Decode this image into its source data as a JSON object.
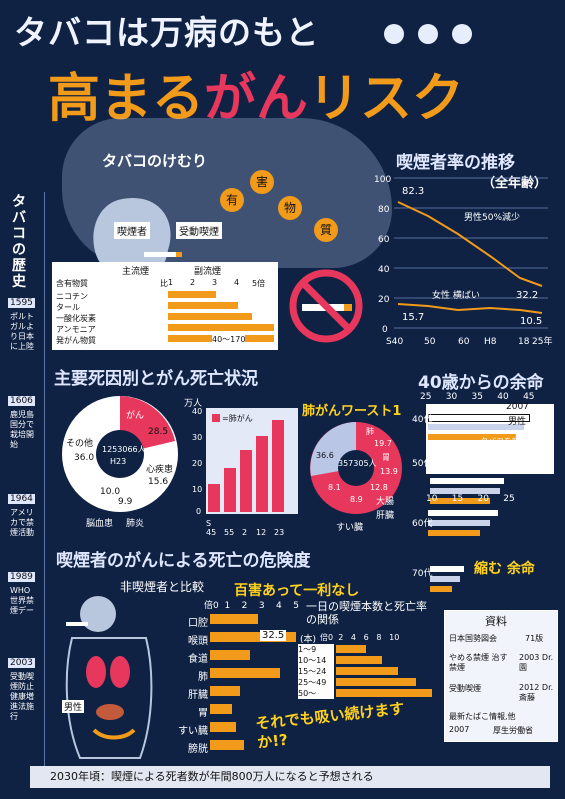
{
  "header": {
    "title_line1": "タバコは万病のもと",
    "title_line2_a": "高まる",
    "title_line2_b": "がん",
    "title_line2_c": "リスク"
  },
  "smoke_section": {
    "label": "タバコのけむり",
    "words": [
      "有",
      "害",
      "物",
      "質"
    ],
    "smoker": "喫煙者",
    "passive": "受動喫煙",
    "main_stream": "主流煙",
    "side_stream": "副流煙",
    "ratio_label": "比",
    "scale": [
      "1",
      "2",
      "3",
      "4",
      "5倍"
    ],
    "substances_header": "含有物質",
    "substances": [
      "ニコチン",
      "タール",
      "一酸化炭素",
      "アンモニア",
      "発がん物質"
    ],
    "range_label": "40〜170"
  },
  "side_history": {
    "title": "タバコの歴史",
    "entries": [
      {
        "year": "1595",
        "text": "ポルトガルより日本に上陸"
      },
      {
        "year": "1606",
        "text": "鹿児島国分で栽培開始"
      },
      {
        "year": "1964",
        "text": "アメリカで禁煙活動"
      },
      {
        "year": "1989",
        "text": "WHO 世界禁煙デー"
      },
      {
        "year": "2003",
        "text": "受動喫煙防止健康増進法施行"
      }
    ]
  },
  "smoking_rate": {
    "title": "喫煙者率の推移",
    "subtitle": "（全年齢）",
    "male_note": "男性50%減少",
    "female_note": "女性 横ばい",
    "labels": [
      "82.3",
      "32.2",
      "15.7",
      "10.5"
    ]
  },
  "death_cause": {
    "title": "主要死因別とがん死亡状況",
    "total": "1253066人",
    "h23": "H23",
    "pie_labels": [
      "その他",
      "がん",
      "心疾患",
      "脳血管",
      "肺炎"
    ],
    "pie_values": [
      "36.0",
      "28.5",
      "15.6",
      "9.9",
      "10.0"
    ],
    "under_label_left": "脳血患",
    "under_label_right": "肺炎"
  },
  "lung_cancer": {
    "title": "肺がんワースト1",
    "unit": "万人",
    "legend": "=肺がん",
    "total": "357305人",
    "labels": [
      "肺",
      "胃",
      "大腸",
      "すい臓",
      "肝臓",
      "その他"
    ],
    "values": [
      "19.7",
      "13.9",
      "12.8",
      "8.9",
      "8.1",
      "36.6"
    ]
  },
  "life_expectancy": {
    "title": "40歳からの余命",
    "top_axis": [
      "25",
      "30",
      "35",
      "40",
      "45"
    ],
    "bottom_axis": [
      "10",
      "15",
      "20",
      "25"
    ],
    "year": "2007",
    "male": "男性",
    "legend": [
      "タバコを吸わない人",
      "やめた人",
      "吸う人"
    ],
    "ages": [
      "40代",
      "50代",
      "60代",
      "70代"
    ],
    "summary": "縮む 余命"
  },
  "risk": {
    "title": "喫煙者のがんによる死亡の危険度",
    "subtitle": "非喫煙者と比較",
    "slogan": "百害あって一利なし",
    "scale": [
      "倍0",
      "1",
      "2",
      "3",
      "4",
      "5"
    ],
    "organs": [
      "口腔",
      "喉頭",
      "食道",
      "肺",
      "肝臓",
      "胃",
      "すい臓",
      "膀胱"
    ],
    "larynx_value": "32.5",
    "male": "男性",
    "question": "それでも吸い続けますか!?"
  },
  "daily_count": {
    "title": "一日の喫煙本数と死亡率の関係",
    "unit": "(本)",
    "scale": [
      "倍0",
      "2",
      "4",
      "6",
      "8",
      "10"
    ],
    "categories": [
      "1〜9",
      "10〜14",
      "15〜24",
      "25〜49",
      "50〜"
    ]
  },
  "sources": {
    "title": "資料",
    "items": [
      {
        "left": "日本国勢図会",
        "right": "71版"
      },
      {
        "left": "やめる禁煙 治す禁煙",
        "right": "2003 Dr.園"
      },
      {
        "left": "受動喫煙",
        "right": "2012 Dr.斎藤"
      },
      {
        "left": "最新たばこ情報,他",
        "right": ""
      },
      {
        "left": "2007",
        "right": "厚生労働省"
      }
    ]
  },
  "footer": "2030年頃：喫煙による死者数が年間800万人になると予想される",
  "colors": {
    "background": "#0f2244",
    "orange": "#f29a1a",
    "pink": "#e8375d",
    "light": "#dfe7ff"
  }
}
